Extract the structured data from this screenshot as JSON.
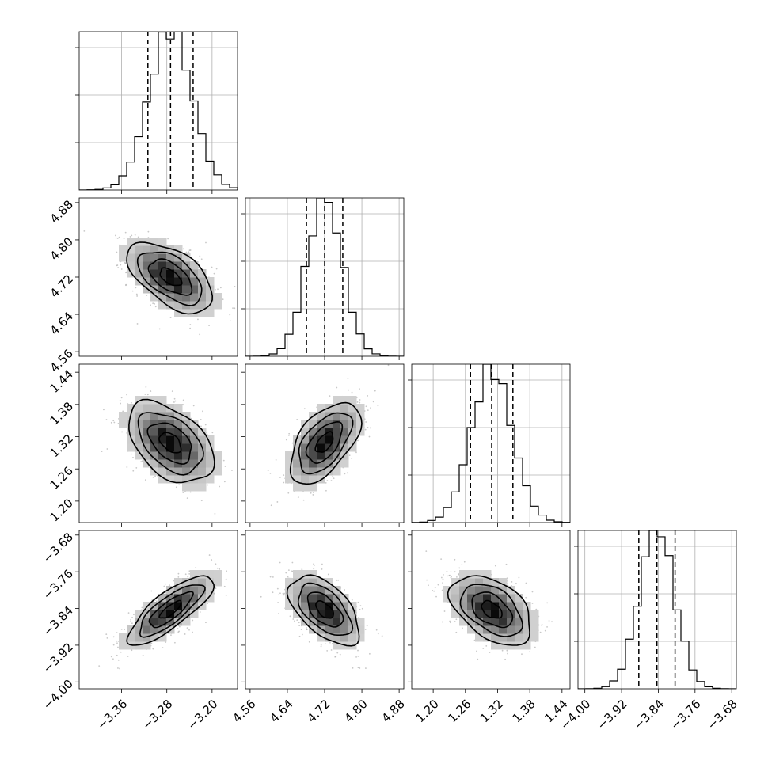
{
  "chart_data": {
    "type": "corner",
    "parameters": [
      {
        "range": [
          -3.435,
          -3.155
        ],
        "ticks": [
          -3.36,
          -3.28,
          -3.2
        ],
        "tick_labels": [
          "−3.36",
          "−3.28",
          "−3.20"
        ],
        "mean": -3.2735,
        "sigma": 0.0378,
        "quantiles": [
          -3.3135,
          -3.2735,
          -3.2335
        ]
      },
      {
        "range": [
          4.55,
          4.89
        ],
        "ticks": [
          4.56,
          4.64,
          4.72,
          4.8,
          4.88
        ],
        "tick_labels": [
          "4.56",
          "4.64",
          "4.72",
          "4.80",
          "4.88"
        ],
        "mean": 4.72,
        "sigma": 0.0378,
        "quantiles": [
          4.681,
          4.72,
          4.759
        ]
      },
      {
        "range": [
          1.16,
          1.455
        ],
        "ticks": [
          1.2,
          1.26,
          1.32,
          1.38,
          1.44
        ],
        "tick_labels": [
          "1.20",
          "1.26",
          "1.32",
          "1.38",
          "1.44"
        ],
        "mean": 1.309,
        "sigma": 0.0378,
        "quantiles": [
          1.2695,
          1.309,
          1.3485
        ]
      },
      {
        "range": [
          -4.015,
          -3.67
        ],
        "ticks": [
          -4.0,
          -3.92,
          -3.84,
          -3.76,
          -3.68
        ],
        "tick_labels": [
          "−4.00",
          "−3.92",
          "−3.84",
          "−3.76",
          "−3.68"
        ],
        "mean": -3.843,
        "sigma": 0.0378,
        "quantiles": [
          -3.8825,
          -3.843,
          -3.8035
        ]
      }
    ],
    "correlations": [
      [
        1.0,
        -0.55,
        -0.45,
        0.8
      ],
      [
        -0.55,
        1.0,
        0.55,
        -0.55
      ],
      [
        -0.45,
        0.55,
        1.0,
        -0.45
      ],
      [
        0.8,
        -0.55,
        -0.45,
        1.0
      ]
    ],
    "histogram_bins": 20,
    "grid": true
  }
}
